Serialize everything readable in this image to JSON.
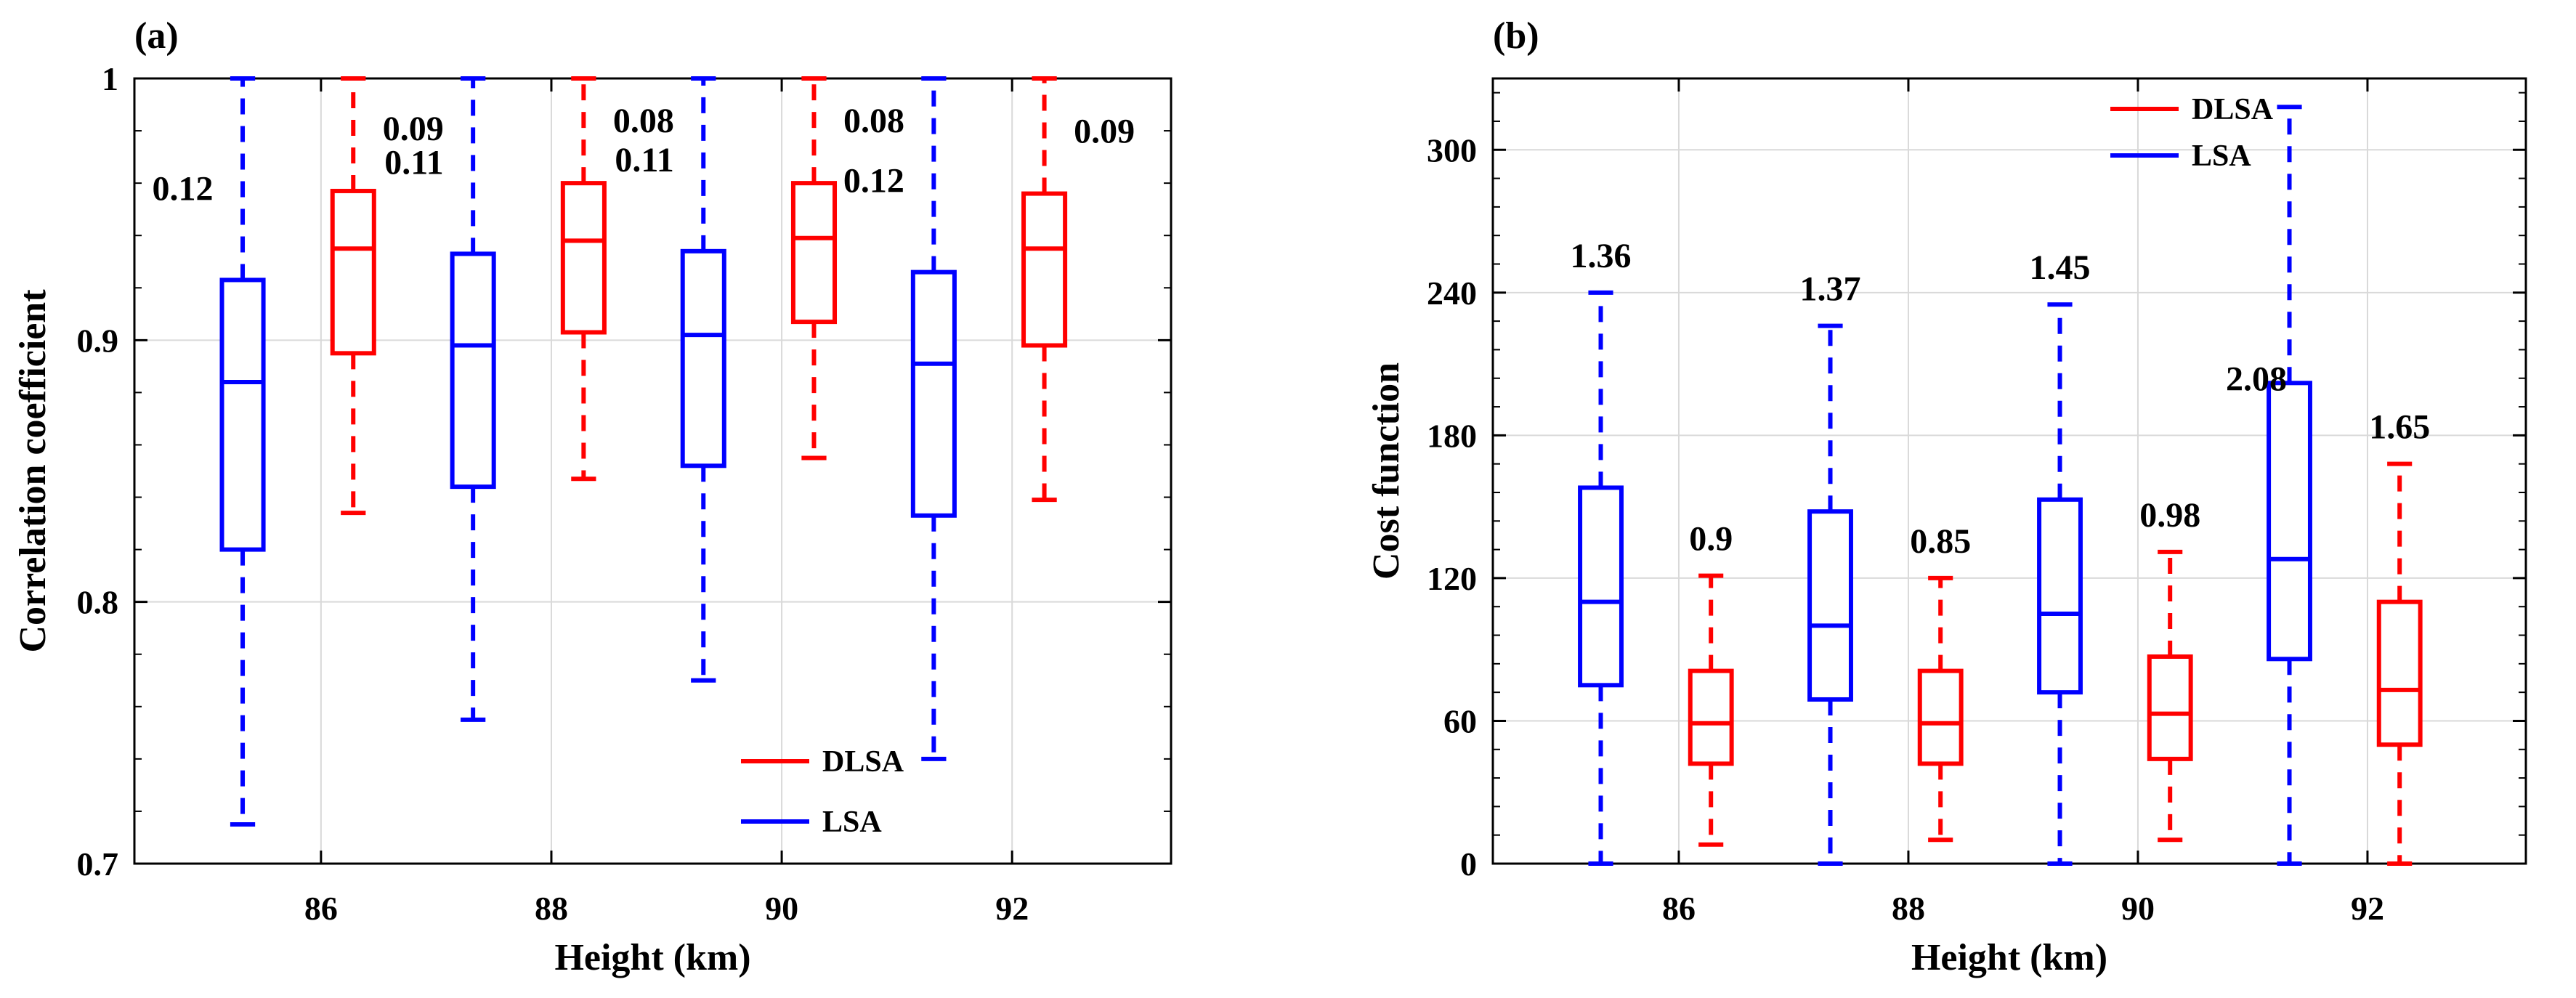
{
  "chart_data": [
    {
      "type": "box",
      "panel_label": "(a)",
      "xlabel": "Height (km)",
      "ylabel": "Correlation coefficient",
      "categories": [
        "86",
        "88",
        "90",
        "92"
      ],
      "ylim": [
        0.7,
        1.0
      ],
      "yticks": [
        0.7,
        0.8,
        0.9,
        1.0
      ],
      "ytick_labels": [
        "0.7",
        "0.8",
        "0.9",
        "1"
      ],
      "grid": true,
      "legend": {
        "position": "bottom-right",
        "entries": [
          "DLSA",
          "LSA"
        ]
      },
      "series": [
        {
          "name": "LSA",
          "color": "#0000ff",
          "boxes": [
            {
              "min": 0.715,
              "q1": 0.82,
              "median": 0.884,
              "q3": 0.923,
              "max": 1.0,
              "label": "0.12"
            },
            {
              "min": 0.755,
              "q1": 0.844,
              "median": 0.898,
              "q3": 0.933,
              "max": 1.0,
              "label": "0.11"
            },
            {
              "min": 0.77,
              "q1": 0.852,
              "median": 0.902,
              "q3": 0.934,
              "max": 1.0,
              "label": "0.11"
            },
            {
              "min": 0.74,
              "q1": 0.833,
              "median": 0.891,
              "q3": 0.926,
              "max": 1.0,
              "label": "0.12"
            }
          ]
        },
        {
          "name": "DLSA",
          "color": "#ff0000",
          "boxes": [
            {
              "min": 0.834,
              "q1": 0.895,
              "median": 0.935,
              "q3": 0.957,
              "max": 1.0,
              "label": "0.09"
            },
            {
              "min": 0.847,
              "q1": 0.903,
              "median": 0.938,
              "q3": 0.96,
              "max": 1.0,
              "label": "0.08"
            },
            {
              "min": 0.855,
              "q1": 0.907,
              "median": 0.939,
              "q3": 0.96,
              "max": 1.0,
              "label": "0.08"
            },
            {
              "min": 0.839,
              "q1": 0.898,
              "median": 0.935,
              "q3": 0.956,
              "max": 1.0,
              "label": "0.09"
            }
          ]
        }
      ]
    },
    {
      "type": "box",
      "panel_label": "(b)",
      "xlabel": "Height (km)",
      "ylabel": "Cost function",
      "categories": [
        "86",
        "88",
        "90",
        "92"
      ],
      "ylim": [
        0,
        330
      ],
      "yticks": [
        0,
        60,
        120,
        180,
        240,
        300
      ],
      "ytick_labels": [
        "0",
        "60",
        "120",
        "180",
        "240",
        "300"
      ],
      "grid": true,
      "legend": {
        "position": "top-center",
        "entries": [
          "DLSA",
          "LSA"
        ]
      },
      "series": [
        {
          "name": "LSA",
          "color": "#0000ff",
          "boxes": [
            {
              "min": 0,
              "q1": 75,
              "median": 110,
              "q3": 158,
              "max": 240,
              "label": "1.36"
            },
            {
              "min": 0,
              "q1": 69,
              "median": 100,
              "q3": 148,
              "max": 226,
              "label": "1.37"
            },
            {
              "min": 0,
              "q1": 72,
              "median": 105,
              "q3": 153,
              "max": 235,
              "label": "1.45"
            },
            {
              "min": 0,
              "q1": 86,
              "median": 128,
              "q3": 202,
              "max": 318,
              "label": "2.08"
            }
          ]
        },
        {
          "name": "DLSA",
          "color": "#ff0000",
          "boxes": [
            {
              "min": 8,
              "q1": 42,
              "median": 59,
              "q3": 81,
              "max": 121,
              "label": "0.9"
            },
            {
              "min": 10,
              "q1": 42,
              "median": 59,
              "q3": 81,
              "max": 120,
              "label": "0.85"
            },
            {
              "min": 10,
              "q1": 44,
              "median": 63,
              "q3": 87,
              "max": 131,
              "label": "0.98"
            },
            {
              "min": 0,
              "q1": 50,
              "median": 73,
              "q3": 110,
              "max": 168,
              "label": "1.65"
            }
          ]
        }
      ]
    }
  ]
}
